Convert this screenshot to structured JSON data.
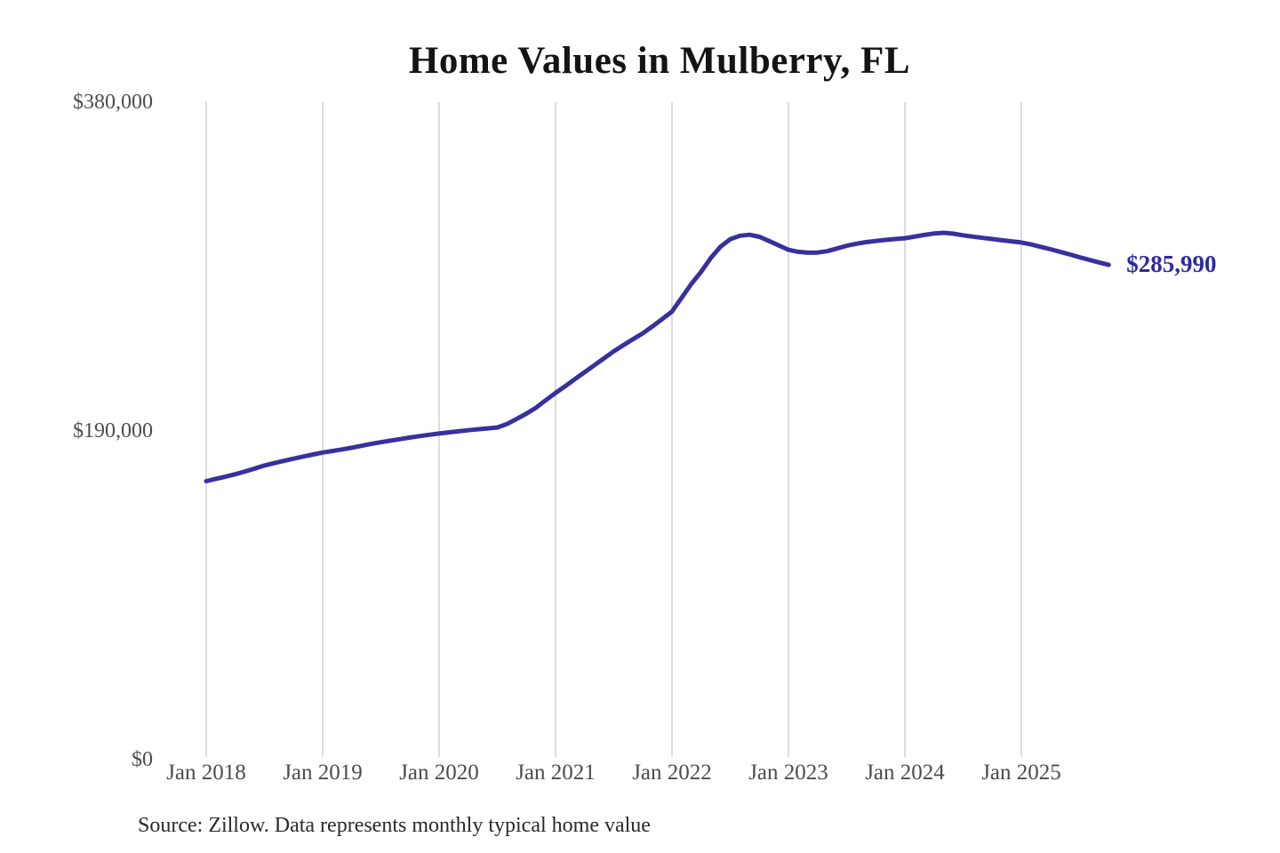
{
  "source": "Source: Zillow. Data represents monthly typical home value",
  "chart_data": {
    "type": "line",
    "title": "Home Values in Mulberry, FL",
    "series_name": "Monthly typical home value",
    "unit": "USD",
    "start_month": "2018-01",
    "frequency": "monthly",
    "end_month": "2025-10",
    "x_ticks": [
      "Jan 2018",
      "Jan 2019",
      "Jan 2020",
      "Jan 2021",
      "Jan 2022",
      "Jan 2023",
      "Jan 2024",
      "Jan 2025"
    ],
    "y_ticks": [
      {
        "label": "$380,000",
        "value": 380000
      },
      {
        "label": "$190,000",
        "value": 190000
      },
      {
        "label": "$0",
        "value": 0
      }
    ],
    "ylim": [
      0,
      380000
    ],
    "grid": "vertical-only",
    "legend": "none",
    "end_label": "$285,990",
    "latest_value": 285990,
    "line_color": "#38309e",
    "end_label_color": "#2e2b9e",
    "values": [
      161000,
      162300,
      163600,
      165000,
      166600,
      168300,
      170000,
      171400,
      172700,
      174000,
      175200,
      176400,
      177500,
      178400,
      179300,
      180300,
      181400,
      182500,
      183500,
      184400,
      185300,
      186200,
      187000,
      187800,
      188500,
      189200,
      189800,
      190400,
      191000,
      191500,
      192000,
      194000,
      197000,
      200000,
      203500,
      207800,
      212000,
      215900,
      220000,
      224000,
      228000,
      232000,
      236000,
      239600,
      243100,
      246500,
      250500,
      254700,
      259000,
      267000,
      275000,
      282000,
      290000,
      296500,
      300800,
      302800,
      303400,
      302200,
      299800,
      297200,
      294700,
      293500,
      293000,
      293100,
      293900,
      295400,
      297000,
      298200,
      299100,
      299800,
      300400,
      300900,
      301400,
      302300,
      303300,
      304100,
      304500,
      304000,
      303100,
      302300,
      301600,
      300900,
      300200,
      299600,
      298900,
      297800,
      296400,
      295000,
      293500,
      292000,
      290400,
      288900,
      287400,
      285990
    ]
  }
}
